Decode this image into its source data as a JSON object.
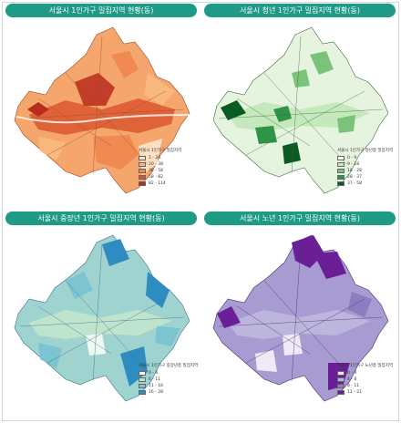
{
  "panels": [
    {
      "title": "서울시 1인가구 밀집지역 현황(동)",
      "legend_title": "서울시 1인가구 밀집지역",
      "legend": [
        {
          "label": "1 - 20",
          "color": "#fde0c2"
        },
        {
          "label": "20 - 38",
          "color": "#f9b87e"
        },
        {
          "label": "38 - 58",
          "color": "#f08a52"
        },
        {
          "label": "58 - 82",
          "color": "#dc5630"
        },
        {
          "label": "82 - 114",
          "color": "#b82c1c"
        }
      ]
    },
    {
      "title": "서울시 청년 1인가구 밀집지역 현황(동)",
      "legend_title": "서울시 1인가구 청년층 밀집지역",
      "legend": [
        {
          "label": "0 - 9",
          "color": "#f7fcf3"
        },
        {
          "label": "9 - 18",
          "color": "#c5e8bc"
        },
        {
          "label": "18 - 28",
          "color": "#79c47a"
        },
        {
          "label": "28 - 37",
          "color": "#2e9448"
        },
        {
          "label": "37 - 58",
          "color": "#0a5a24"
        }
      ]
    },
    {
      "title": "서울시 중장년 1인가구 밀집지역 현황(동)",
      "legend_title": "서울시 1인가구 중장년층 밀집지역",
      "legend": [
        {
          "label": "0 - 6",
          "color": "#eef8f0"
        },
        {
          "label": "6 - 11",
          "color": "#bfe4cd"
        },
        {
          "label": "11 - 16",
          "color": "#7cc4d2"
        },
        {
          "label": "16 - 28",
          "color": "#2f8cc0"
        }
      ]
    },
    {
      "title": "서울시 노년 1인가구 밀집지역 현황(동)",
      "legend_title": "서울시 1인가구 노년층 밀집지역",
      "legend": [
        {
          "label": "0 - 4",
          "color": "#eeebf6"
        },
        {
          "label": "4 - 8",
          "color": "#bcb6dc"
        },
        {
          "label": "8 - 11",
          "color": "#8e7cc0"
        },
        {
          "label": "11 - 21",
          "color": "#6a1f96"
        }
      ]
    }
  ]
}
